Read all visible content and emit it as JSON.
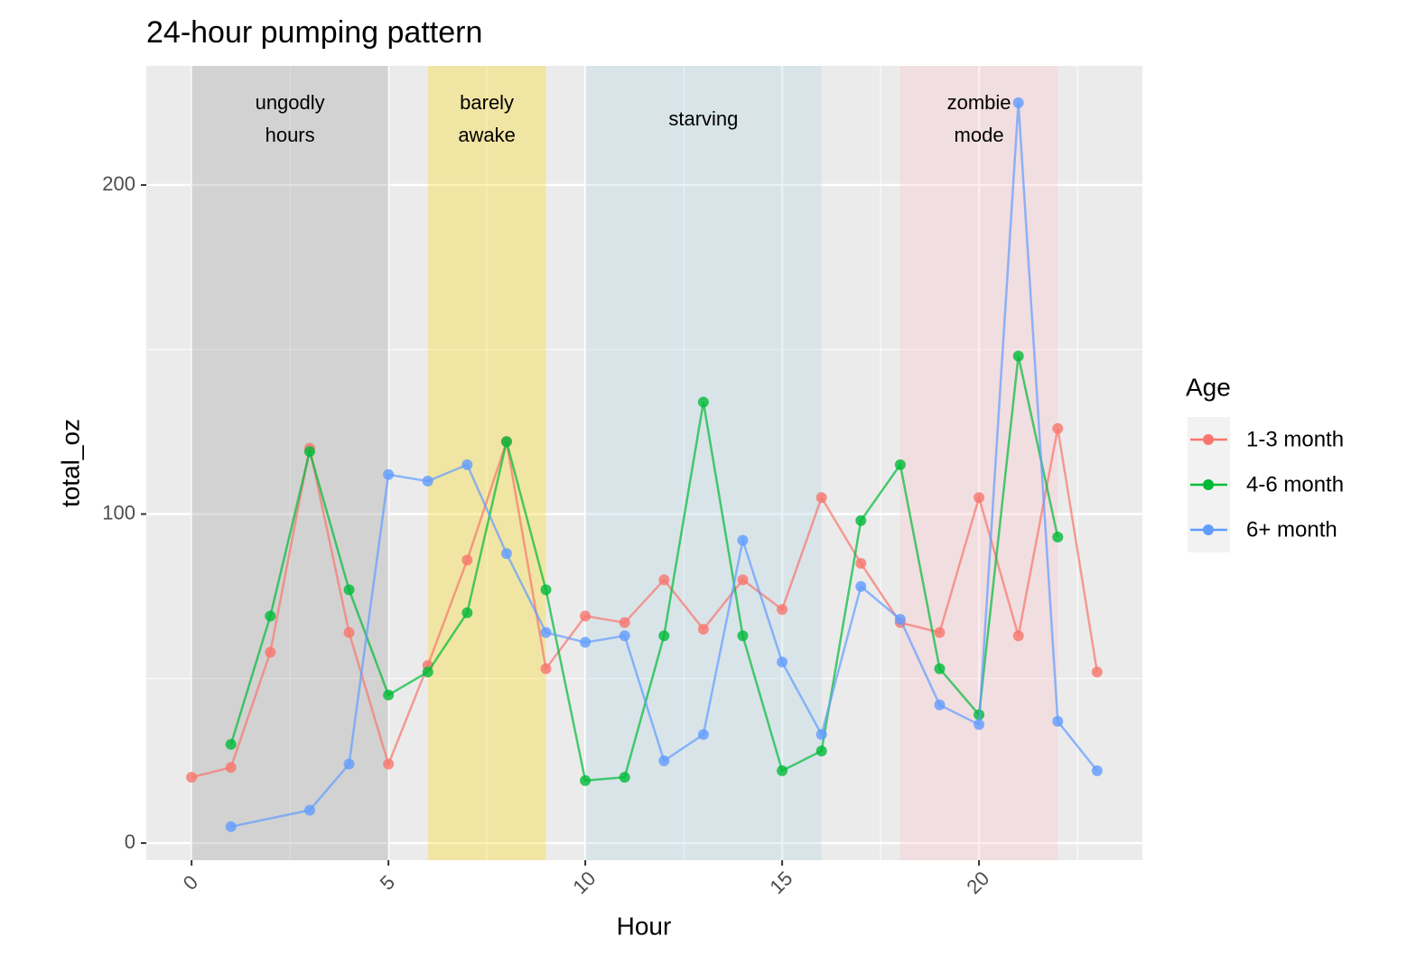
{
  "chart_data": {
    "type": "line",
    "title": "24-hour pumping pattern",
    "x_label": "Hour",
    "y_label": "total_oz",
    "xlim": [
      -1.15,
      24.15
    ],
    "ylim": [
      -5.2,
      236.2
    ],
    "xticks": [
      0,
      5,
      10,
      15,
      20
    ],
    "yticks": [
      0,
      100,
      200
    ],
    "x_minor_ticks": [
      2.5,
      7.5,
      12.5,
      17.5,
      22.5
    ],
    "y_minor_ticks": [
      50,
      150
    ],
    "grid": true,
    "legend_title": "Age",
    "legend_position": "right",
    "annotations": [
      {
        "xmin": 0,
        "xmax": 5,
        "color": "#999999",
        "label": [
          "ungodly",
          "hours"
        ]
      },
      {
        "xmin": 6,
        "xmax": 9,
        "color": "#ffd700",
        "label": [
          "barely",
          "awake"
        ]
      },
      {
        "xmin": 10,
        "xmax": 16,
        "color": "#b0d4e6",
        "label": [
          "starving"
        ]
      },
      {
        "xmin": 18,
        "xmax": 22,
        "color": "#ffc0cb",
        "label": [
          "zombie",
          "mode"
        ]
      }
    ],
    "series": [
      {
        "name": "1-3 month",
        "color": "#F8766D",
        "x": [
          0,
          1,
          2,
          3,
          4,
          5,
          6,
          7,
          8,
          9,
          10,
          11,
          12,
          13,
          14,
          15,
          16,
          17,
          18,
          19,
          20,
          21,
          22,
          23
        ],
        "values": [
          20,
          23,
          58,
          120,
          64,
          24,
          54,
          86,
          122,
          53,
          69,
          67,
          80,
          65,
          80,
          71,
          105,
          85,
          67,
          64,
          105,
          63,
          126,
          52
        ]
      },
      {
        "name": "4-6 month",
        "color": "#00BA38",
        "x": [
          1,
          2,
          3,
          4,
          5,
          6,
          7,
          8,
          9,
          10,
          11,
          12,
          13,
          14,
          15,
          16,
          17,
          18,
          19,
          20,
          21,
          22
        ],
        "values": [
          30,
          69,
          119,
          77,
          45,
          52,
          70,
          122,
          77,
          19,
          20,
          63,
          134,
          63,
          22,
          28,
          98,
          115,
          53,
          39,
          148,
          93
        ]
      },
      {
        "name": "6+ month",
        "color": "#619CFF",
        "x": [
          1,
          3,
          4,
          5,
          6,
          7,
          8,
          9,
          10,
          11,
          12,
          13,
          14,
          15,
          16,
          17,
          18,
          19,
          20,
          21,
          22,
          23
        ],
        "values": [
          5,
          10,
          24,
          112,
          110,
          115,
          88,
          64,
          61,
          63,
          25,
          33,
          92,
          55,
          33,
          78,
          68,
          42,
          36,
          225,
          37,
          22
        ]
      }
    ]
  }
}
